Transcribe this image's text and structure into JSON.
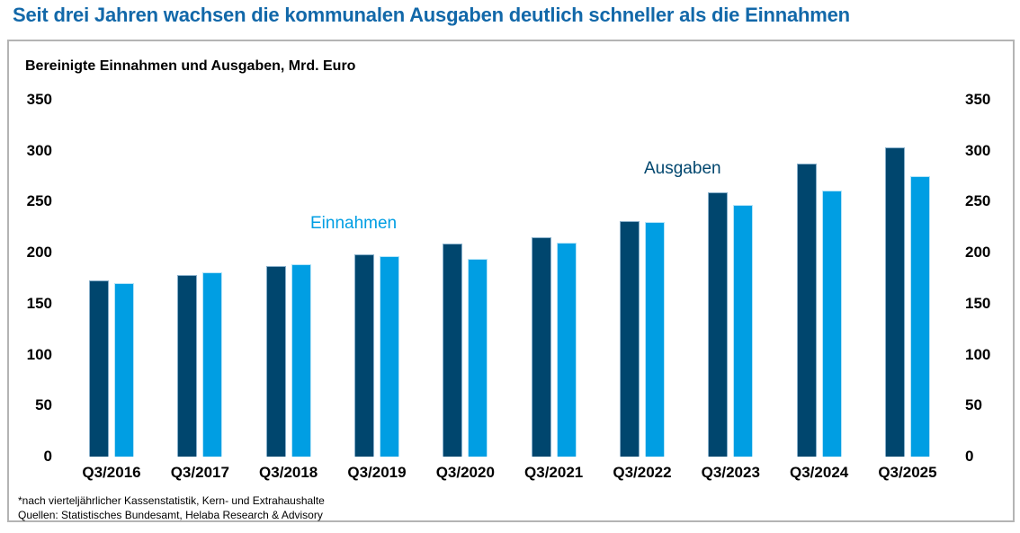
{
  "header": {
    "title": "Seit drei Jahren wachsen die kommunalen Ausgaben deutlich schneller als die Einnahmen",
    "title_color": "#1268A9"
  },
  "panel": {
    "subtitle": "Bereinigte Einnahmen und Ausgaben, Mrd. Euro",
    "border_color": "#B4B4B4"
  },
  "chart_data": {
    "type": "bar",
    "title": "Bereinigte Einnahmen und Ausgaben, Mrd. Euro",
    "categories": [
      "Q3/2016",
      "Q3/2017",
      "Q3/2018",
      "Q3/2019",
      "Q3/2020",
      "Q3/2021",
      "Q3/2022",
      "Q3/2023",
      "Q3/2024",
      "Q3/2025"
    ],
    "series": [
      {
        "name": "Ausgaben",
        "color": "#00466E",
        "values": [
          173,
          178,
          187,
          198,
          209,
          215,
          231,
          259,
          287,
          303
        ]
      },
      {
        "name": "Einnahmen",
        "color": "#009EE3",
        "values": [
          170,
          181,
          189,
          197,
          194,
          210,
          230,
          247,
          261,
          275
        ]
      }
    ],
    "xlabel": "",
    "ylabel": "",
    "ylim": [
      0,
      350
    ],
    "yticks": [
      350,
      300,
      250,
      200,
      150,
      100,
      50,
      0
    ],
    "y_axis_sides": [
      "left",
      "right"
    ],
    "grid": false,
    "legend_position": "inline-text-annotations"
  },
  "footnotes": {
    "line1": "*nach vierteljährlicher Kassenstatistik, Kern- und Extrahaushalte",
    "line2": "Quellen: Statistisches Bundesamt, Helaba Research & Advisory"
  }
}
